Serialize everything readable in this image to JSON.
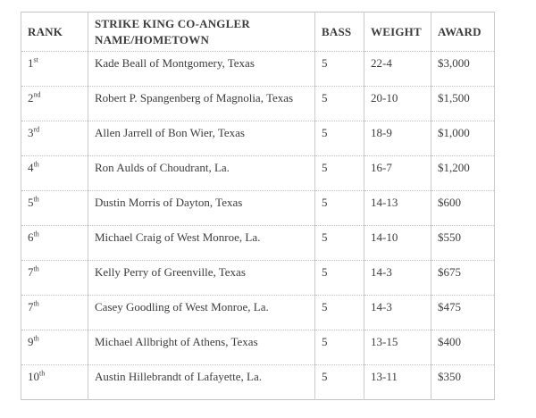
{
  "colors": {
    "text": "#3c3c3c",
    "border_outer": "#c3c3c3",
    "border_vertical": "#cccccc",
    "border_horizontal": "#c0c0c0",
    "background": "#ffffff"
  },
  "table": {
    "columns": [
      {
        "label": "RANK"
      },
      {
        "label_line1": "STRIKE KING CO-ANGLER",
        "label_line2": "NAME/HOMETOWN"
      },
      {
        "label": "BASS"
      },
      {
        "label": "WEIGHT"
      },
      {
        "label": "AWARD"
      }
    ],
    "rows": [
      {
        "rank_num": "1",
        "rank_suffix": "st",
        "name": "Kade Beall of Montgomery, Texas",
        "bass": "5",
        "weight": "22-4",
        "award": "$3,000"
      },
      {
        "rank_num": "2",
        "rank_suffix": "nd",
        "name": "Robert P. Spangenberg of Magnolia, Texas",
        "bass": "5",
        "weight": "20-10",
        "award": "$1,500"
      },
      {
        "rank_num": "3",
        "rank_suffix": "rd",
        "name": "Allen Jarrell of Bon Wier, Texas",
        "bass": "5",
        "weight": "18-9",
        "award": "$1,000"
      },
      {
        "rank_num": "4",
        "rank_suffix": "th",
        "name": "Ron Aulds of Choudrant, La.",
        "bass": "5",
        "weight": "16-7",
        "award": "$1,200"
      },
      {
        "rank_num": "5",
        "rank_suffix": "th",
        "name": "Dustin Morris of Dayton, Texas",
        "bass": "5",
        "weight": "14-13",
        "award": "$600"
      },
      {
        "rank_num": "6",
        "rank_suffix": "th",
        "name": "Michael Craig of West Monroe, La.",
        "bass": "5",
        "weight": "14-10",
        "award": "$550"
      },
      {
        "rank_num": "7",
        "rank_suffix": "th",
        "name": "Kelly Perry of Greenville, Texas",
        "bass": "5",
        "weight": "14-3",
        "award": "$675"
      },
      {
        "rank_num": "7",
        "rank_suffix": "th",
        "name": "Casey Goodling of West Monroe, La.",
        "bass": "5",
        "weight": "14-3",
        "award": "$475"
      },
      {
        "rank_num": "9",
        "rank_suffix": "th",
        "name": "Michael Allbright of Athens, Texas",
        "bass": "5",
        "weight": "13-15",
        "award": "$400"
      },
      {
        "rank_num": "10",
        "rank_suffix": "th",
        "name": "Austin Hillebrandt of Lafayette, La.",
        "bass": "5",
        "weight": "13-11",
        "award": "$350"
      }
    ]
  }
}
